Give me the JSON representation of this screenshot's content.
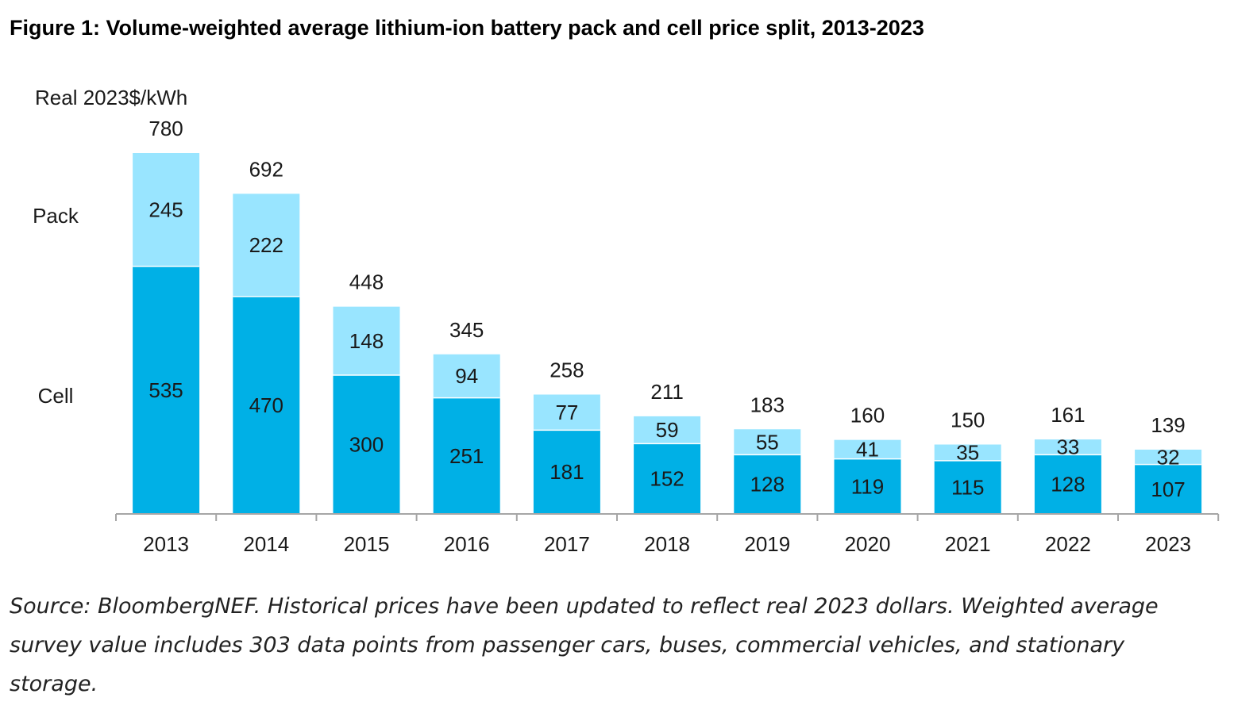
{
  "figure_title": "Figure 1: Volume-weighted average lithium-ion battery pack and cell price split, 2013-2023",
  "source_note": "Source: BloombergNEF. Historical prices have been updated to reflect real 2023 dollars. Weighted average survey value includes 303 data points from passenger cars, buses, commercial vehicles, and stationary storage.",
  "colors": {
    "cell": "#00b0e6",
    "pack": "#99e5ff",
    "axis": "#a6a6a6",
    "text": "#1a1a1a"
  },
  "chart_data": {
    "type": "bar",
    "stacked": true,
    "title": "Figure 1: Volume-weighted average lithium-ion battery pack and cell price split, 2013-2023",
    "ylabel": "Real 2023$/kWh",
    "xlabel": "",
    "ylim": [
      0,
      780
    ],
    "grid": false,
    "legend": "left",
    "categories": [
      "2013",
      "2014",
      "2015",
      "2016",
      "2017",
      "2018",
      "2019",
      "2020",
      "2021",
      "2022",
      "2023"
    ],
    "series": [
      {
        "name": "Cell",
        "values": [
          535,
          470,
          300,
          251,
          181,
          152,
          128,
          119,
          115,
          128,
          107
        ]
      },
      {
        "name": "Pack",
        "values": [
          245,
          222,
          148,
          94,
          77,
          59,
          55,
          41,
          35,
          33,
          32
        ]
      }
    ],
    "totals": [
      780,
      692,
      448,
      345,
      258,
      211,
      183,
      160,
      150,
      161,
      139
    ]
  }
}
